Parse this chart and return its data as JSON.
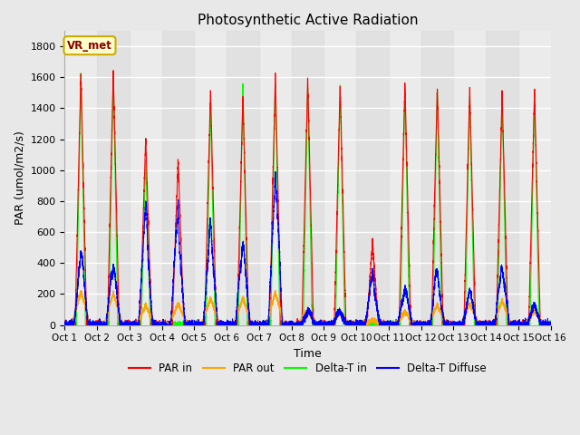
{
  "title": "Photosynthetic Active Radiation",
  "xlabel": "Time",
  "ylabel": "PAR (umol/m2/s)",
  "ylim": [
    0,
    1900
  ],
  "yticks": [
    0,
    200,
    400,
    600,
    800,
    1000,
    1200,
    1400,
    1600,
    1800
  ],
  "x_labels": [
    "Oct 1",
    "Oct 2",
    "Oct 3",
    "Oct 4",
    "Oct 5",
    "Oct 6",
    "Oct 7",
    "Oct 8",
    "Oct 9",
    "Oct 10",
    "Oct 11",
    "Oct 12",
    "Oct 13",
    "Oct 14",
    "Oct 15",
    "Oct 16"
  ],
  "legend_labels": [
    "PAR in",
    "PAR out",
    "Delta-T in",
    "Delta-T Diffuse"
  ],
  "legend_colors": [
    "red",
    "orange",
    "lime",
    "blue"
  ],
  "label_box_text": "VR_met",
  "label_box_bg": "#ffffcc",
  "label_box_edge": "#ccaa00",
  "label_box_text_color": "#880000",
  "background_color": "#e8e8e8",
  "plot_bg_light": "#ebebeb",
  "plot_bg_dark": "#d8d8d8",
  "grid_color": "#ffffff",
  "n_points": 7200,
  "days": 15,
  "par_in_peaks": [
    1630,
    1650,
    1210,
    1065,
    1530,
    1475,
    1610,
    1590,
    1560,
    530,
    1570,
    1540,
    1525,
    1500,
    1510
  ],
  "par_out_peaks": [
    220,
    210,
    130,
    140,
    175,
    175,
    210,
    90,
    90,
    35,
    90,
    130,
    140,
    160,
    90
  ],
  "delta_t_in_peaks": [
    1610,
    1640,
    1060,
    0,
    1420,
    1560,
    1560,
    1540,
    1550,
    0,
    1540,
    1520,
    1490,
    1490,
    1490
  ],
  "delta_t_diff_peaks": [
    400,
    430,
    650,
    830,
    655,
    600,
    950,
    100,
    120,
    310,
    280,
    350,
    190,
    490,
    120
  ]
}
